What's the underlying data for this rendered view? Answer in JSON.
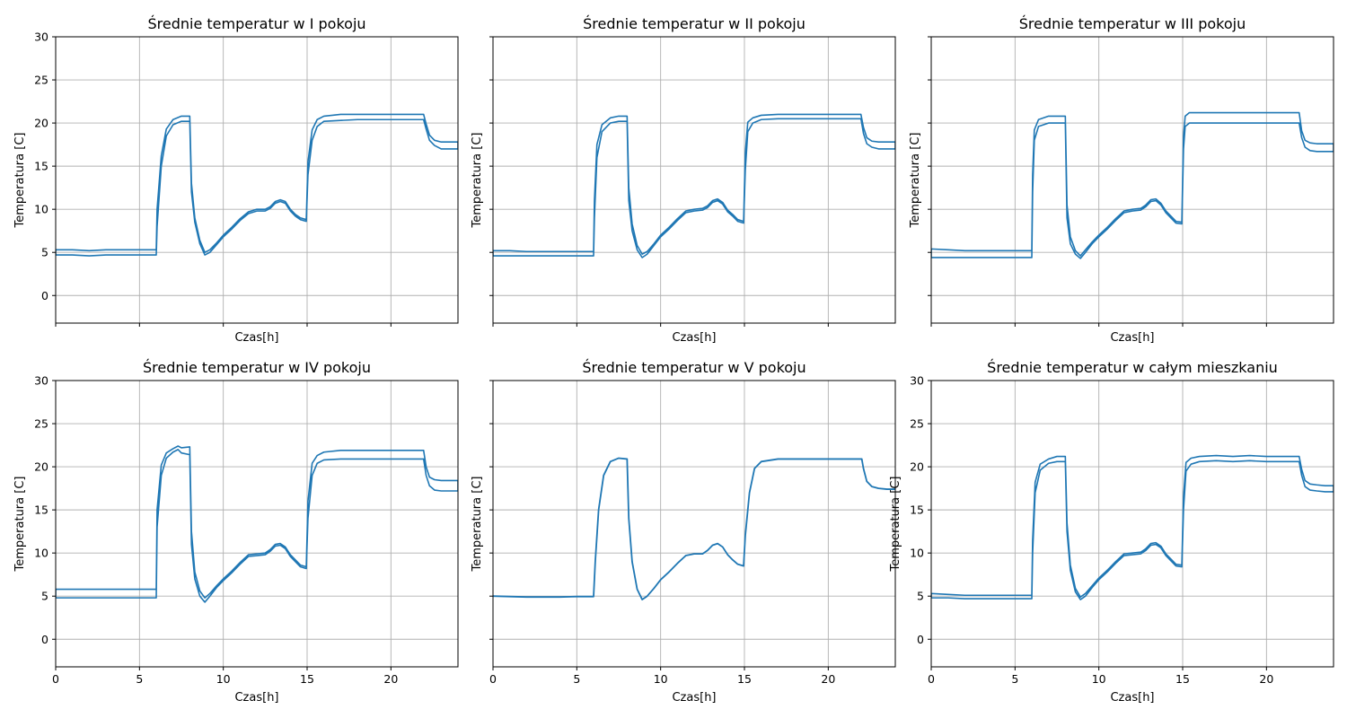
{
  "figure": {
    "xlabel": "Czas[h]",
    "ylabel": "Temperatura [C]"
  },
  "chart_data": [
    {
      "type": "line",
      "title": "Średnie temperatur w I pokoju",
      "xlabel": "Czas[h]",
      "ylabel": "Temperatura [C]",
      "xlim": [
        0,
        24
      ],
      "ylim": [
        -3.2,
        30
      ],
      "xticks": [
        0,
        5,
        10,
        15,
        20
      ],
      "yticks": [
        0,
        5,
        10,
        15,
        20,
        25,
        30
      ],
      "show_x_tick_labels": false,
      "show_y_tick_labels": true,
      "grid": true,
      "color": "#1f77b4",
      "series": [
        {
          "x": [
            0,
            1,
            2,
            3,
            4,
            5,
            6,
            6.05,
            6.3,
            6.6,
            7.0,
            7.5,
            8.0,
            8.1,
            8.3,
            8.6,
            8.9,
            9.2,
            9.6,
            10.0,
            10.5,
            11.0,
            11.5,
            12.0,
            12.5,
            12.8,
            13.1,
            13.4,
            13.7,
            14.0,
            14.3,
            14.6,
            14.95,
            15.05,
            15.3,
            15.6,
            16.0,
            17.0,
            18.0,
            19.0,
            20.0,
            21.0,
            21.95,
            22.1,
            22.3,
            22.6,
            23.0,
            23.5,
            24
          ],
          "low": [
            4.7,
            4.7,
            4.6,
            4.7,
            4.7,
            4.7,
            4.7,
            8.0,
            15.0,
            18.5,
            19.8,
            20.2,
            20.2,
            12.0,
            8.5,
            6.0,
            4.7,
            5.0,
            5.9,
            6.8,
            7.7,
            8.7,
            9.5,
            9.8,
            9.8,
            10.1,
            10.7,
            10.9,
            10.7,
            9.8,
            9.2,
            8.8,
            8.6,
            14.0,
            18.0,
            19.6,
            20.2,
            20.3,
            20.4,
            20.4,
            20.4,
            20.4,
            20.4,
            19.3,
            18.0,
            17.4,
            17.0,
            17.0,
            17.0
          ],
          "high": [
            5.3,
            5.3,
            5.2,
            5.3,
            5.3,
            5.3,
            5.3,
            10.0,
            16.2,
            19.3,
            20.4,
            20.8,
            20.8,
            13.0,
            9.0,
            6.4,
            5.0,
            5.3,
            6.1,
            7.0,
            7.9,
            8.9,
            9.7,
            10.0,
            10.0,
            10.3,
            10.9,
            11.1,
            10.9,
            10.0,
            9.4,
            9.0,
            8.8,
            15.5,
            19.2,
            20.4,
            20.8,
            21.0,
            21.0,
            21.0,
            21.0,
            21.0,
            21.0,
            19.9,
            18.6,
            18.0,
            17.8,
            17.8,
            17.8
          ]
        }
      ]
    },
    {
      "type": "line",
      "title": "Średnie temperatur w II pokoju",
      "xlabel": "Czas[h]",
      "ylabel": "Temperatura [C]",
      "xlim": [
        0,
        24
      ],
      "ylim": [
        -3.2,
        30
      ],
      "xticks": [
        0,
        5,
        10,
        15,
        20
      ],
      "yticks": [
        0,
        5,
        10,
        15,
        20,
        25,
        30
      ],
      "show_x_tick_labels": false,
      "show_y_tick_labels": false,
      "grid": true,
      "color": "#1f77b4",
      "series": [
        {
          "x": [
            0,
            1,
            2,
            3,
            4,
            5,
            6,
            6.05,
            6.2,
            6.5,
            7.0,
            7.5,
            8.0,
            8.1,
            8.3,
            8.6,
            8.9,
            9.2,
            9.6,
            10.0,
            10.5,
            11.0,
            11.5,
            12.0,
            12.5,
            12.8,
            13.1,
            13.4,
            13.7,
            14.0,
            14.3,
            14.6,
            14.95,
            15.05,
            15.2,
            15.5,
            16.0,
            17.0,
            18.0,
            19.0,
            20.0,
            21.0,
            21.95,
            22.1,
            22.3,
            22.6,
            23.0,
            23.5,
            24
          ],
          "low": [
            4.6,
            4.6,
            4.6,
            4.6,
            4.6,
            4.6,
            4.6,
            9.0,
            16.0,
            19.0,
            20.0,
            20.2,
            20.2,
            11.0,
            7.5,
            5.3,
            4.4,
            4.8,
            5.8,
            6.8,
            7.7,
            8.7,
            9.6,
            9.8,
            9.9,
            10.2,
            10.8,
            11.0,
            10.6,
            9.7,
            9.2,
            8.6,
            8.4,
            14.5,
            19.0,
            20.0,
            20.4,
            20.5,
            20.5,
            20.5,
            20.5,
            20.5,
            20.5,
            18.8,
            17.6,
            17.2,
            17.0,
            17.0,
            17.0
          ],
          "high": [
            5.2,
            5.2,
            5.1,
            5.1,
            5.1,
            5.1,
            5.1,
            11.0,
            17.5,
            19.8,
            20.6,
            20.8,
            20.8,
            12.5,
            8.3,
            5.8,
            4.8,
            5.1,
            6.0,
            7.0,
            7.9,
            8.9,
            9.8,
            10.0,
            10.1,
            10.4,
            11.0,
            11.2,
            10.8,
            9.9,
            9.4,
            8.8,
            8.6,
            16.5,
            20.1,
            20.6,
            20.9,
            21.0,
            21.0,
            21.0,
            21.0,
            21.0,
            21.0,
            19.5,
            18.3,
            17.9,
            17.8,
            17.8,
            17.8
          ]
        }
      ]
    },
    {
      "type": "line",
      "title": "Średnie temperatur w III pokoju",
      "xlabel": "Czas[h]",
      "ylabel": "Temperatura [C]",
      "xlim": [
        0,
        24
      ],
      "ylim": [
        -3.2,
        30
      ],
      "xticks": [
        0,
        5,
        10,
        15,
        20
      ],
      "yticks": [
        0,
        5,
        10,
        15,
        20,
        25,
        30
      ],
      "show_x_tick_labels": false,
      "show_y_tick_labels": false,
      "grid": true,
      "color": "#1f77b4",
      "series": [
        {
          "x": [
            0,
            1,
            2,
            3,
            4,
            5,
            6,
            6.05,
            6.15,
            6.4,
            7.0,
            7.5,
            8.0,
            8.1,
            8.3,
            8.6,
            8.9,
            9.2,
            9.6,
            10.0,
            10.5,
            11.0,
            11.5,
            12.0,
            12.5,
            12.8,
            13.1,
            13.4,
            13.7,
            14.0,
            14.3,
            14.6,
            14.95,
            15.05,
            15.15,
            15.4,
            16.0,
            17.0,
            18.0,
            19.0,
            20.0,
            21.0,
            21.95,
            22.1,
            22.3,
            22.6,
            23.0,
            23.5,
            24
          ],
          "low": [
            4.4,
            4.4,
            4.4,
            4.4,
            4.4,
            4.4,
            4.4,
            12.0,
            18.0,
            19.6,
            20.0,
            20.0,
            20.0,
            9.0,
            6.0,
            4.8,
            4.3,
            5.0,
            6.0,
            6.8,
            7.7,
            8.7,
            9.6,
            9.8,
            9.9,
            10.3,
            10.9,
            11.0,
            10.5,
            9.6,
            9.0,
            8.4,
            8.3,
            17.0,
            19.6,
            20.0,
            20.0,
            20.0,
            20.0,
            20.0,
            20.0,
            20.0,
            20.0,
            18.3,
            17.2,
            16.8,
            16.7,
            16.7,
            16.7
          ],
          "high": [
            5.4,
            5.3,
            5.2,
            5.2,
            5.2,
            5.2,
            5.2,
            14.0,
            19.2,
            20.4,
            20.8,
            20.8,
            20.8,
            10.5,
            6.8,
            5.2,
            4.6,
            5.3,
            6.2,
            7.0,
            7.9,
            8.9,
            9.8,
            10.0,
            10.1,
            10.5,
            11.1,
            11.2,
            10.7,
            9.8,
            9.2,
            8.6,
            8.5,
            18.5,
            20.8,
            21.2,
            21.2,
            21.2,
            21.2,
            21.2,
            21.2,
            21.2,
            21.2,
            19.1,
            18.0,
            17.7,
            17.6,
            17.6,
            17.6
          ]
        }
      ]
    },
    {
      "type": "line",
      "title": "Średnie temperatur w IV pokoju",
      "xlabel": "Czas[h]",
      "ylabel": "Temperatura [C]",
      "xlim": [
        0,
        24
      ],
      "ylim": [
        -3.2,
        30
      ],
      "xticks": [
        0,
        5,
        10,
        15,
        20
      ],
      "yticks": [
        0,
        5,
        10,
        15,
        20,
        25,
        30
      ],
      "show_x_tick_labels": true,
      "show_y_tick_labels": true,
      "grid": true,
      "color": "#1f77b4",
      "series": [
        {
          "x": [
            0,
            1,
            2,
            3,
            4,
            5,
            6,
            6.05,
            6.3,
            6.6,
            7.0,
            7.3,
            7.5,
            8.0,
            8.1,
            8.3,
            8.6,
            8.9,
            9.2,
            9.6,
            10.0,
            10.5,
            11.0,
            11.5,
            12.0,
            12.5,
            12.8,
            13.1,
            13.4,
            13.7,
            14.0,
            14.3,
            14.6,
            14.95,
            15.05,
            15.3,
            15.6,
            16.0,
            17.0,
            18.0,
            19.0,
            20.0,
            21.0,
            21.95,
            22.1,
            22.3,
            22.6,
            23.0,
            23.5,
            24
          ],
          "low": [
            4.8,
            4.8,
            4.8,
            4.8,
            4.8,
            4.8,
            4.8,
            13.0,
            19.0,
            21.0,
            21.7,
            22.0,
            21.6,
            21.4,
            11.0,
            7.0,
            5.0,
            4.3,
            5.0,
            6.0,
            6.8,
            7.7,
            8.7,
            9.6,
            9.7,
            9.8,
            10.2,
            10.8,
            10.9,
            10.5,
            9.6,
            9.0,
            8.4,
            8.2,
            14.0,
            19.0,
            20.4,
            20.8,
            20.9,
            20.9,
            20.9,
            20.9,
            20.9,
            20.9,
            19.0,
            17.8,
            17.3,
            17.2,
            17.2,
            17.2
          ],
          "high": [
            5.8,
            5.8,
            5.8,
            5.8,
            5.8,
            5.8,
            5.8,
            15.0,
            20.2,
            21.6,
            22.1,
            22.4,
            22.2,
            22.3,
            12.5,
            7.8,
            5.6,
            4.8,
            5.3,
            6.2,
            7.0,
            7.9,
            8.9,
            9.8,
            9.9,
            10.0,
            10.4,
            11.0,
            11.1,
            10.7,
            9.8,
            9.2,
            8.6,
            8.4,
            16.0,
            20.4,
            21.3,
            21.7,
            21.9,
            21.9,
            21.9,
            21.9,
            21.9,
            21.9,
            20.0,
            18.8,
            18.5,
            18.4,
            18.4,
            18.4
          ]
        }
      ]
    },
    {
      "type": "line",
      "title": "Średnie temperatur w V pokoju",
      "xlabel": "Czas[h]",
      "ylabel": "Temperatura [C]",
      "xlim": [
        0,
        24
      ],
      "ylim": [
        -3.2,
        30
      ],
      "xticks": [
        0,
        5,
        10,
        15,
        20
      ],
      "yticks": [
        0,
        5,
        10,
        15,
        20,
        25,
        30
      ],
      "show_x_tick_labels": true,
      "show_y_tick_labels": false,
      "grid": true,
      "color": "#1f77b4",
      "series": [
        {
          "x": [
            0,
            1,
            2,
            3,
            4,
            5,
            6,
            6.1,
            6.3,
            6.6,
            7.0,
            7.5,
            8.0,
            8.1,
            8.3,
            8.6,
            8.9,
            9.2,
            9.6,
            10.0,
            10.5,
            11.0,
            11.5,
            12.0,
            12.5,
            12.8,
            13.1,
            13.4,
            13.7,
            14.0,
            14.3,
            14.6,
            14.95,
            15.05,
            15.3,
            15.6,
            16.0,
            17.0,
            18.0,
            19.0,
            20.0,
            21.0,
            22.0,
            22.1,
            22.3,
            22.6,
            23.0,
            23.5,
            24
          ],
          "low": [
            5.0,
            4.95,
            4.9,
            4.9,
            4.9,
            4.95,
            4.95,
            9.0,
            15.0,
            19.0,
            20.6,
            21.0,
            20.9,
            14.0,
            9.0,
            5.8,
            4.6,
            5.0,
            5.9,
            6.9,
            7.8,
            8.8,
            9.7,
            9.9,
            9.9,
            10.3,
            10.9,
            11.1,
            10.7,
            9.8,
            9.2,
            8.7,
            8.5,
            12.0,
            17.0,
            19.8,
            20.6,
            20.9,
            20.9,
            20.9,
            20.9,
            20.9,
            20.9,
            19.8,
            18.3,
            17.7,
            17.5,
            17.4,
            17.4
          ],
          "high": [
            5.0,
            4.95,
            4.9,
            4.9,
            4.9,
            4.95,
            4.95,
            9.0,
            15.0,
            19.0,
            20.6,
            21.0,
            20.9,
            14.0,
            9.0,
            5.8,
            4.6,
            5.0,
            5.9,
            6.9,
            7.8,
            8.8,
            9.7,
            9.9,
            9.9,
            10.3,
            10.9,
            11.1,
            10.7,
            9.8,
            9.2,
            8.7,
            8.5,
            12.0,
            17.0,
            19.8,
            20.6,
            20.9,
            20.9,
            20.9,
            20.9,
            20.9,
            20.9,
            19.8,
            18.3,
            17.7,
            17.5,
            17.4,
            17.4
          ]
        }
      ]
    },
    {
      "type": "line",
      "title": "Średnie temperatur w całym mieszkaniu",
      "xlabel": "Czas[h]",
      "ylabel": "Temperatura [C]",
      "xlim": [
        0,
        24
      ],
      "ylim": [
        -3.2,
        30
      ],
      "xticks": [
        0,
        5,
        10,
        15,
        20
      ],
      "yticks": [
        0,
        5,
        10,
        15,
        20,
        25,
        30
      ],
      "show_x_tick_labels": true,
      "show_y_tick_labels": true,
      "grid": true,
      "color": "#1f77b4",
      "series": [
        {
          "x": [
            0,
            1,
            2,
            3,
            4,
            5,
            6,
            6.05,
            6.2,
            6.5,
            7.0,
            7.5,
            8.0,
            8.1,
            8.3,
            8.6,
            8.9,
            9.2,
            9.6,
            10.0,
            10.5,
            11.0,
            11.5,
            12.0,
            12.5,
            12.8,
            13.1,
            13.4,
            13.7,
            14.0,
            14.3,
            14.6,
            14.95,
            15.05,
            15.2,
            15.5,
            16.0,
            17.0,
            18.0,
            19.0,
            20.0,
            21.0,
            21.95,
            22.1,
            22.3,
            22.6,
            23.0,
            23.5,
            24
          ],
          "low": [
            4.8,
            4.8,
            4.7,
            4.7,
            4.7,
            4.7,
            4.7,
            10.0,
            17.0,
            19.6,
            20.4,
            20.6,
            20.6,
            12.5,
            8.0,
            5.5,
            4.6,
            5.0,
            6.0,
            6.9,
            7.8,
            8.8,
            9.7,
            9.8,
            9.9,
            10.3,
            10.9,
            11.0,
            10.6,
            9.7,
            9.1,
            8.5,
            8.4,
            15.0,
            19.5,
            20.3,
            20.6,
            20.7,
            20.6,
            20.7,
            20.6,
            20.6,
            20.6,
            19.0,
            17.7,
            17.3,
            17.2,
            17.1,
            17.1
          ],
          "high": [
            5.3,
            5.2,
            5.1,
            5.1,
            5.1,
            5.1,
            5.1,
            11.5,
            18.2,
            20.3,
            20.9,
            21.2,
            21.2,
            13.5,
            8.6,
            5.9,
            4.9,
            5.3,
            6.2,
            7.1,
            8.0,
            9.0,
            9.9,
            10.0,
            10.1,
            10.5,
            11.1,
            11.2,
            10.8,
            9.9,
            9.3,
            8.7,
            8.6,
            16.5,
            20.5,
            21.0,
            21.2,
            21.3,
            21.2,
            21.3,
            21.2,
            21.2,
            21.2,
            19.7,
            18.4,
            18.0,
            17.9,
            17.8,
            17.8
          ]
        }
      ]
    }
  ]
}
